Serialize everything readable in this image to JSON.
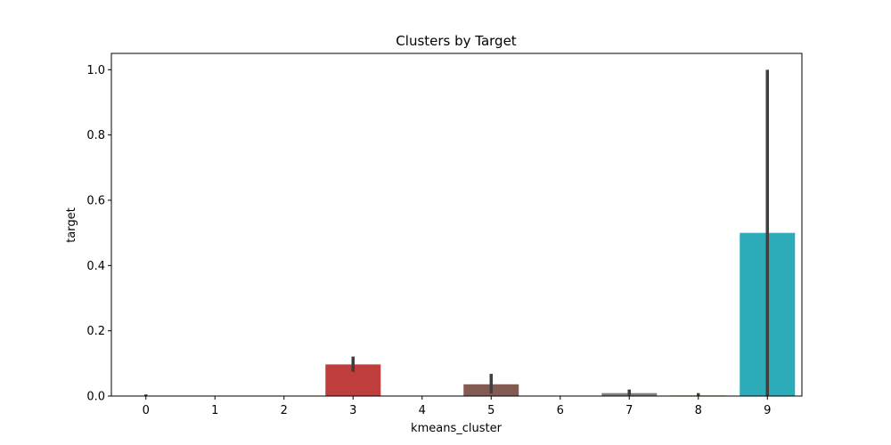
{
  "chart_data": {
    "type": "bar",
    "title": "Clusters by Target",
    "xlabel": "kmeans_cluster",
    "ylabel": "target",
    "categories": [
      "0",
      "1",
      "2",
      "3",
      "4",
      "5",
      "6",
      "7",
      "8",
      "9"
    ],
    "values": [
      0.001,
      0.0,
      0.0,
      0.097,
      0.0,
      0.036,
      0.0,
      0.009,
      0.002,
      0.5
    ],
    "error_bars": [
      [
        0.0,
        0.005
      ],
      [
        0.0,
        0.0
      ],
      [
        0.0,
        0.0
      ],
      [
        0.074,
        0.121
      ],
      [
        0.0,
        0.0
      ],
      [
        0.008,
        0.068
      ],
      [
        0.0,
        0.0
      ],
      [
        0.002,
        0.02
      ],
      [
        0.0,
        0.009
      ],
      [
        0.0,
        1.0
      ]
    ],
    "colors": [
      "#3274a1",
      "#e1812c",
      "#3a923a",
      "#c03d3e",
      "#9372b2",
      "#845b53",
      "#d684bd",
      "#7f7f7f",
      "#a9aa35",
      "#2eabb8"
    ],
    "error_color": "#3f3f3f",
    "yticks": [
      "0.0",
      "0.2",
      "0.4",
      "0.6",
      "0.8",
      "1.0"
    ],
    "ylim": [
      0,
      1.05
    ],
    "grid": false,
    "legend": "none"
  }
}
